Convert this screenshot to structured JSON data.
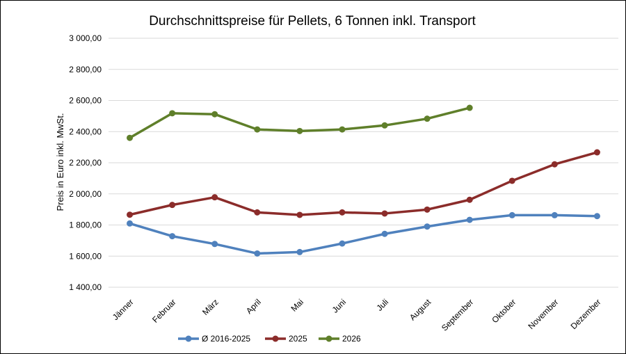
{
  "chart_data": {
    "type": "line",
    "title": "Durchschnittspreise für Pellets, 6 Tonnen inkl. Transport",
    "xlabel": "",
    "ylabel": "Preis in Euro inkl. MwSt.",
    "ylim": [
      1400,
      3000
    ],
    "yticks": [
      1400,
      1600,
      1800,
      2000,
      2200,
      2400,
      2600,
      2800,
      3000
    ],
    "ytick_labels": [
      "1 400,00",
      "1 600,00",
      "1 800,00",
      "2 000,00",
      "2 200,00",
      "2 400,00",
      "2 600,00",
      "2 800,00",
      "3 000,00"
    ],
    "grid": true,
    "legend_position": "bottom",
    "categories": [
      "Jänner",
      "Februar",
      "März",
      "April",
      "Mai",
      "Juni",
      "Juli",
      "August",
      "September",
      "Oktober",
      "November",
      "Dezember"
    ],
    "series": [
      {
        "name": "Ø 2016-2025",
        "color": "#4f81bd",
        "values": [
          1810,
          1728,
          1678,
          1617,
          1626,
          1681,
          1743,
          1790,
          1833,
          1863,
          1863,
          1857
        ]
      },
      {
        "name": "2025",
        "color": "#8b2c2a",
        "values": [
          1866,
          1929,
          1978,
          1881,
          1865,
          1881,
          1874,
          1899,
          1962,
          2084,
          2190,
          2267
        ]
      },
      {
        "name": "2026",
        "color": "#5f7f2a",
        "values": [
          2360,
          2518,
          2512,
          2414,
          2404,
          2414,
          2440,
          2483,
          2553,
          null,
          null,
          null
        ]
      }
    ]
  }
}
